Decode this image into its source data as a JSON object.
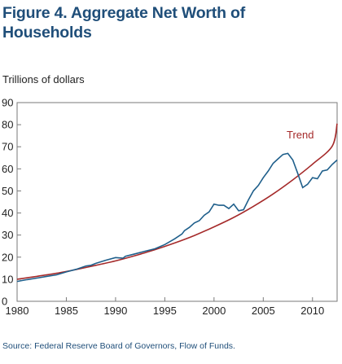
{
  "chart_data": {
    "type": "line",
    "title": "Figure 4. Aggregate Net Worth of Households",
    "ylabel": "Trillions of dollars",
    "xlabel": "",
    "source": "Source: Federal Reserve Board of Governors, Flow of Funds.",
    "xlim": [
      1980,
      2012.5
    ],
    "ylim": [
      0,
      90
    ],
    "x_ticks": [
      "1980",
      "1985",
      "1990",
      "1995",
      "2000",
      "2005",
      "2010"
    ],
    "y_ticks": [
      "0",
      "10",
      "20",
      "30",
      "40",
      "50",
      "60",
      "70",
      "80",
      "90"
    ],
    "grid": false,
    "colors": {
      "net_worth": "#1f5f8b",
      "trend": "#a52a2a",
      "text": "#1f4e79"
    },
    "annotations": [
      {
        "text": "Trend",
        "series": "trend"
      }
    ],
    "series": [
      {
        "name": "",
        "key": "net_worth",
        "points": [
          [
            1980.0,
            9.0
          ],
          [
            1981.0,
            9.8
          ],
          [
            1982.0,
            10.5
          ],
          [
            1983.0,
            11.3
          ],
          [
            1984.0,
            12.0
          ],
          [
            1985.0,
            13.3
          ],
          [
            1986.0,
            14.5
          ],
          [
            1987.0,
            16.0
          ],
          [
            1987.5,
            16.3
          ],
          [
            1988.0,
            17.2
          ],
          [
            1989.0,
            18.6
          ],
          [
            1990.0,
            19.8
          ],
          [
            1990.75,
            19.5
          ],
          [
            1991.0,
            20.4
          ],
          [
            1992.0,
            21.5
          ],
          [
            1993.0,
            22.7
          ],
          [
            1994.0,
            23.8
          ],
          [
            1995.0,
            25.7
          ],
          [
            1996.0,
            28.3
          ],
          [
            1996.75,
            30.5
          ],
          [
            1997.0,
            32.0
          ],
          [
            1997.5,
            33.5
          ],
          [
            1998.0,
            35.5
          ],
          [
            1998.5,
            36.5
          ],
          [
            1999.0,
            39.0
          ],
          [
            1999.5,
            40.5
          ],
          [
            2000.0,
            44.0
          ],
          [
            2000.5,
            43.5
          ],
          [
            2001.0,
            43.5
          ],
          [
            2001.5,
            42.0
          ],
          [
            2002.0,
            44.0
          ],
          [
            2002.5,
            41.0
          ],
          [
            2003.0,
            41.5
          ],
          [
            2003.5,
            46.0
          ],
          [
            2004.0,
            50.0
          ],
          [
            2004.5,
            52.5
          ],
          [
            2005.0,
            56.0
          ],
          [
            2005.5,
            59.0
          ],
          [
            2006.0,
            62.5
          ],
          [
            2006.5,
            64.5
          ],
          [
            2007.0,
            66.5
          ],
          [
            2007.5,
            67.0
          ],
          [
            2008.0,
            64.0
          ],
          [
            2008.5,
            58.0
          ],
          [
            2009.0,
            51.5
          ],
          [
            2009.5,
            53.0
          ],
          [
            2010.0,
            56.0
          ],
          [
            2010.5,
            55.5
          ],
          [
            2011.0,
            59.0
          ],
          [
            2011.5,
            59.5
          ],
          [
            2012.0,
            62.0
          ],
          [
            2012.5,
            64.0
          ]
        ]
      },
      {
        "name": "Trend",
        "key": "trend",
        "points": [
          [
            1980,
            10.0
          ],
          [
            1982,
            11.3
          ],
          [
            1984,
            12.7
          ],
          [
            1986,
            14.4
          ],
          [
            1988,
            16.3
          ],
          [
            1990,
            18.3
          ],
          [
            1992,
            20.7
          ],
          [
            1994,
            23.4
          ],
          [
            1996,
            26.4
          ],
          [
            1998,
            29.8
          ],
          [
            2000,
            33.7
          ],
          [
            2002,
            38.0
          ],
          [
            2004,
            43.0
          ],
          [
            2006,
            48.6
          ],
          [
            2008,
            55.0
          ],
          [
            2010,
            62.1
          ],
          [
            2012,
            70.3
          ],
          [
            2012.5,
            80.5
          ]
        ]
      }
    ]
  }
}
